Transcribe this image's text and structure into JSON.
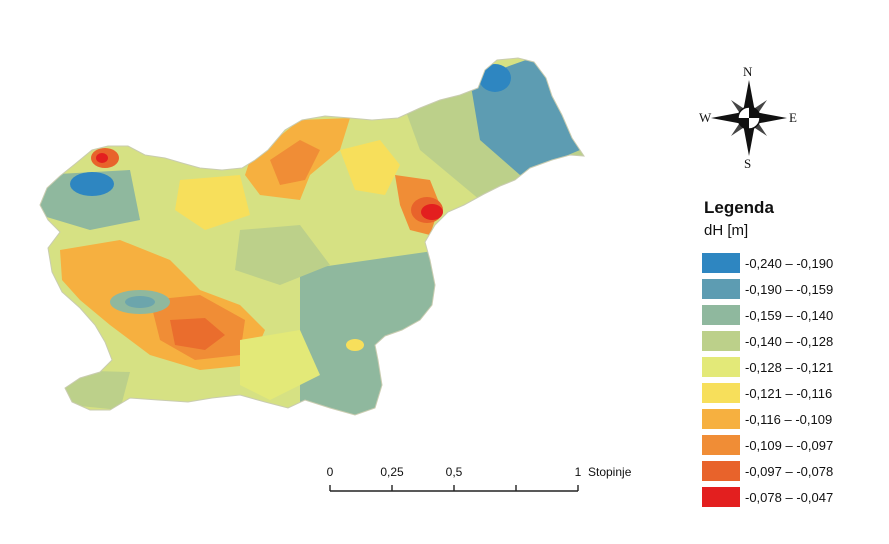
{
  "legend": {
    "title": "Legenda",
    "subtitle": "dH [m]",
    "items": [
      {
        "label": "-0,240 – -0,190",
        "color": "#2e86c1"
      },
      {
        "label": "-0,190 – -0,159",
        "color": "#5d9cb2"
      },
      {
        "label": "-0,159 – -0,140",
        "color": "#8fb89e"
      },
      {
        "label": "-0,140 – -0,128",
        "color": "#bcd08a"
      },
      {
        "label": "-0,128 – -0,121",
        "color": "#e3e978"
      },
      {
        "label": "-0,121 – -0,116",
        "color": "#f7df5b"
      },
      {
        "label": "-0,116 – -0,109",
        "color": "#f6b040"
      },
      {
        "label": "-0,109 – -0,097",
        "color": "#f08d36"
      },
      {
        "label": "-0,097 – -0,078",
        "color": "#e8632b"
      },
      {
        "label": "-0,078 – -0,047",
        "color": "#e31f1f"
      }
    ]
  },
  "scale_bar": {
    "ticks": [
      "0",
      "0,25",
      "0,5",
      "1"
    ],
    "unit": "Stopinje"
  },
  "compass": {
    "n": "N",
    "e": "E",
    "s": "S",
    "w": "W"
  }
}
